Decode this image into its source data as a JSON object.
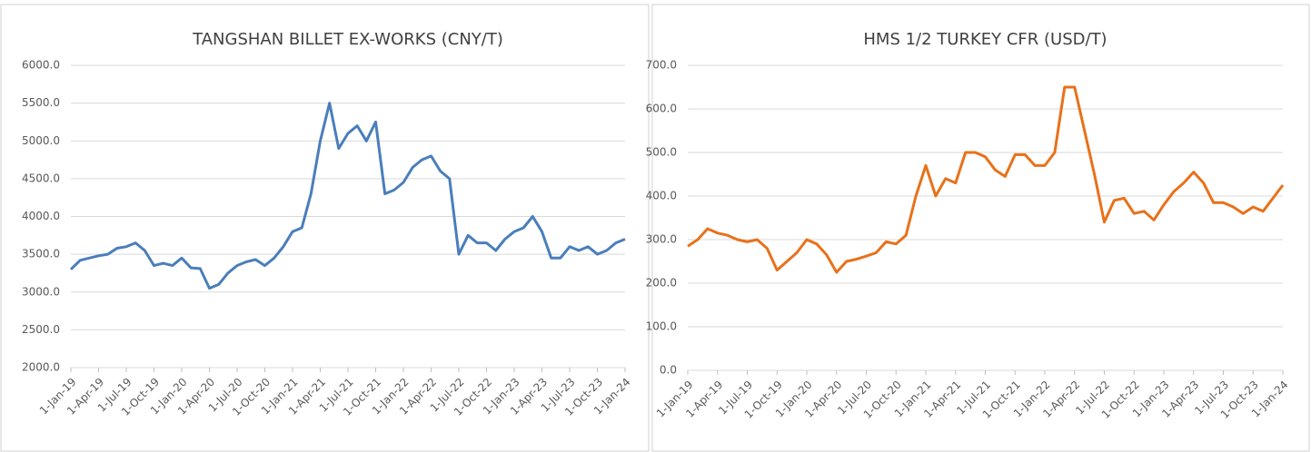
{
  "chart_data": [
    {
      "type": "line",
      "title": "TANGSHAN BILLET EX-WORKS (CNY/T)",
      "x": [
        "1-Jan-19",
        "1-Feb-19",
        "1-Mar-19",
        "1-Apr-19",
        "1-May-19",
        "1-Jun-19",
        "1-Jul-19",
        "1-Aug-19",
        "1-Sep-19",
        "1-Oct-19",
        "1-Nov-19",
        "1-Dec-19",
        "1-Jan-20",
        "1-Feb-20",
        "1-Mar-20",
        "1-Apr-20",
        "1-May-20",
        "1-Jun-20",
        "1-Jul-20",
        "1-Aug-20",
        "1-Sep-20",
        "1-Oct-20",
        "1-Nov-20",
        "1-Dec-20",
        "1-Jan-21",
        "1-Feb-21",
        "1-Mar-21",
        "1-Apr-21",
        "1-May-21",
        "1-Jun-21",
        "1-Jul-21",
        "1-Aug-21",
        "1-Sep-21",
        "1-Oct-21",
        "1-Nov-21",
        "1-Dec-21",
        "1-Jan-22",
        "1-Feb-22",
        "1-Mar-22",
        "1-Apr-22",
        "1-May-22",
        "1-Jun-22",
        "1-Jul-22",
        "1-Aug-22",
        "1-Sep-22",
        "1-Oct-22",
        "1-Nov-22",
        "1-Dec-22",
        "1-Jan-23",
        "1-Feb-23",
        "1-Mar-23",
        "1-Apr-23",
        "1-May-23",
        "1-Jun-23",
        "1-Jul-23",
        "1-Aug-23",
        "1-Sep-23",
        "1-Oct-23",
        "1-Nov-23",
        "1-Dec-23",
        "1-Jan-24"
      ],
      "series": [
        {
          "color": "#4a7ebb",
          "values": [
            3300,
            3420,
            3450,
            3480,
            3500,
            3580,
            3600,
            3650,
            3550,
            3350,
            3380,
            3350,
            3450,
            3320,
            3310,
            3050,
            3100,
            3250,
            3350,
            3400,
            3430,
            3350,
            3450,
            3600,
            3800,
            3850,
            4300,
            5000,
            5500,
            4900,
            5100,
            5200,
            5000,
            5250,
            4300,
            4350,
            4450,
            4650,
            4750,
            4800,
            4600,
            4500,
            3500,
            3750,
            3650,
            3650,
            3550,
            3700,
            3800,
            3850,
            4000,
            3800,
            3450,
            3450,
            3600,
            3550,
            3600,
            3500,
            3550,
            3650,
            3700
          ]
        }
      ],
      "xticks": [
        "1-Jan-19",
        "1-Apr-19",
        "1-Jul-19",
        "1-Oct-19",
        "1-Jan-20",
        "1-Apr-20",
        "1-Jul-20",
        "1-Oct-20",
        "1-Jan-21",
        "1-Apr-21",
        "1-Jul-21",
        "1-Oct-21",
        "1-Jan-22",
        "1-Apr-22",
        "1-Jul-22",
        "1-Oct-22",
        "1-Jan-23",
        "1-Apr-23",
        "1-Jul-23",
        "1-Oct-23",
        "1-Jan-24"
      ],
      "ylim": [
        2000,
        6000
      ],
      "yticks": [
        {
          "value": 2000,
          "label": "2000.0"
        },
        {
          "value": 2500,
          "label": "2500.0"
        },
        {
          "value": 3000,
          "label": "3000.0"
        },
        {
          "value": 3500,
          "label": "3500.0"
        },
        {
          "value": 4000,
          "label": "4000.0"
        },
        {
          "value": 4500,
          "label": "4500.0"
        },
        {
          "value": 5000,
          "label": "5000.0"
        },
        {
          "value": 5500,
          "label": "5500.0"
        },
        {
          "value": 6000,
          "label": "6000.0"
        }
      ],
      "grid": true
    },
    {
      "type": "line",
      "title": "HMS 1/2 TURKEY CFR (USD/T)",
      "x": [
        "1-Jan-19",
        "1-Feb-19",
        "1-Mar-19",
        "1-Apr-19",
        "1-May-19",
        "1-Jun-19",
        "1-Jul-19",
        "1-Aug-19",
        "1-Sep-19",
        "1-Oct-19",
        "1-Nov-19",
        "1-Dec-19",
        "1-Jan-20",
        "1-Feb-20",
        "1-Mar-20",
        "1-Apr-20",
        "1-May-20",
        "1-Jun-20",
        "1-Jul-20",
        "1-Aug-20",
        "1-Sep-20",
        "1-Oct-20",
        "1-Nov-20",
        "1-Dec-20",
        "1-Jan-21",
        "1-Feb-21",
        "1-Mar-21",
        "1-Apr-21",
        "1-May-21",
        "1-Jun-21",
        "1-Jul-21",
        "1-Aug-21",
        "1-Sep-21",
        "1-Oct-21",
        "1-Nov-21",
        "1-Dec-21",
        "1-Jan-22",
        "1-Feb-22",
        "1-Mar-22",
        "1-Apr-22",
        "1-May-22",
        "1-Jun-22",
        "1-Jul-22",
        "1-Aug-22",
        "1-Sep-22",
        "1-Oct-22",
        "1-Nov-22",
        "1-Dec-22",
        "1-Jan-23",
        "1-Feb-23",
        "1-Mar-23",
        "1-Apr-23",
        "1-May-23",
        "1-Jun-23",
        "1-Jul-23",
        "1-Aug-23",
        "1-Sep-23",
        "1-Oct-23",
        "1-Nov-23",
        "1-Dec-23",
        "1-Jan-24"
      ],
      "series": [
        {
          "color": "#e8711a",
          "values": [
            285,
            300,
            325,
            315,
            310,
            300,
            295,
            300,
            280,
            230,
            250,
            270,
            300,
            290,
            265,
            225,
            250,
            255,
            262,
            270,
            295,
            290,
            310,
            400,
            470,
            400,
            440,
            430,
            500,
            500,
            490,
            460,
            445,
            495,
            495,
            470,
            470,
            500,
            650,
            650,
            550,
            450,
            340,
            390,
            395,
            360,
            365,
            345,
            380,
            410,
            430,
            455,
            430,
            385,
            385,
            375,
            360,
            375,
            365,
            395,
            425
          ]
        }
      ],
      "xticks": [
        "1-Jan-19",
        "1-Apr-19",
        "1-Jul-19",
        "1-Oct-19",
        "1-Jan-20",
        "1-Apr-20",
        "1-Jul-20",
        "1-Oct-20",
        "1-Jan-21",
        "1-Apr-21",
        "1-Jul-21",
        "1-Oct-21",
        "1-Jan-22",
        "1-Apr-22",
        "1-Jul-22",
        "1-Oct-22",
        "1-Jan-23",
        "1-Apr-23",
        "1-Jul-23",
        "1-Oct-23",
        "1-Jan-24"
      ],
      "ylim": [
        0,
        700
      ],
      "yticks": [
        {
          "value": 0,
          "label": "0.0"
        },
        {
          "value": 100,
          "label": "100.0"
        },
        {
          "value": 200,
          "label": "200.0"
        },
        {
          "value": 300,
          "label": "300.0"
        },
        {
          "value": 400,
          "label": "400.0"
        },
        {
          "value": 500,
          "label": "500.0"
        },
        {
          "value": 600,
          "label": "600.0"
        },
        {
          "value": 700,
          "label": "700.0"
        }
      ],
      "grid": true
    }
  ]
}
